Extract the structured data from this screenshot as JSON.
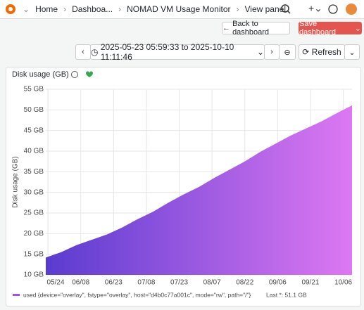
{
  "header": {
    "breadcrumbs": [
      "Home",
      "Dashboa...",
      "NOMAD VM Usage Monitor",
      "View panel"
    ]
  },
  "toolbar": {
    "back_button": "Back to dashboard",
    "save_button": "Save dashboard"
  },
  "time_picker": {
    "range": "2025-05-23 05:59:33 to 2025-10-10 11:11:46",
    "refresh": "Refresh"
  },
  "chart_data": {
    "type": "area",
    "title": "Disk usage (GB)",
    "y_label": "Disk usage (GB)",
    "x": [
      "05/23",
      "05/30",
      "06/06",
      "06/13",
      "06/20",
      "06/27",
      "07/04",
      "07/11",
      "07/18",
      "07/25",
      "08/01",
      "08/08",
      "08/15",
      "08/22",
      "08/29",
      "09/05",
      "09/12",
      "09/19",
      "09/26",
      "10/03",
      "10/10"
    ],
    "series": [
      {
        "name": "used {device=\"overlay\", fstype=\"overlay\", host=\"d4b0c77a001c\", mode=\"rw\", path=\"/\"}",
        "color": "#9a55e8",
        "values": [
          14.2,
          15.5,
          17.2,
          18.5,
          19.8,
          21.5,
          23.5,
          25.3,
          27.5,
          29.5,
          31.3,
          33.5,
          35.5,
          37.5,
          39.8,
          41.8,
          43.8,
          45.5,
          47.2,
          49.2,
          51.1
        ]
      }
    ],
    "gradient": [
      "#5a3bd0",
      "#dd78f2"
    ],
    "legend_stat": "Last *: 51.1 GB",
    "xlim": [
      "05/23",
      "10/10"
    ],
    "xticks": [
      "05/24",
      "06/08",
      "06/23",
      "07/08",
      "07/23",
      "08/07",
      "08/22",
      "09/06",
      "09/21",
      "10/06"
    ],
    "ylim": [
      10,
      55
    ],
    "yticks": [
      {
        "value": 10,
        "label": "10 GB"
      },
      {
        "value": 15,
        "label": "15 GB"
      },
      {
        "value": 20,
        "label": "20 GB"
      },
      {
        "value": 25,
        "label": "25 GB"
      },
      {
        "value": 30,
        "label": "30 GB"
      },
      {
        "value": 35,
        "label": "35 GB"
      },
      {
        "value": 40,
        "label": "40 GB"
      },
      {
        "value": 45,
        "label": "45 GB"
      },
      {
        "value": 50,
        "label": "50 GB"
      },
      {
        "value": 55,
        "label": "55 GB"
      }
    ],
    "grid": true
  }
}
